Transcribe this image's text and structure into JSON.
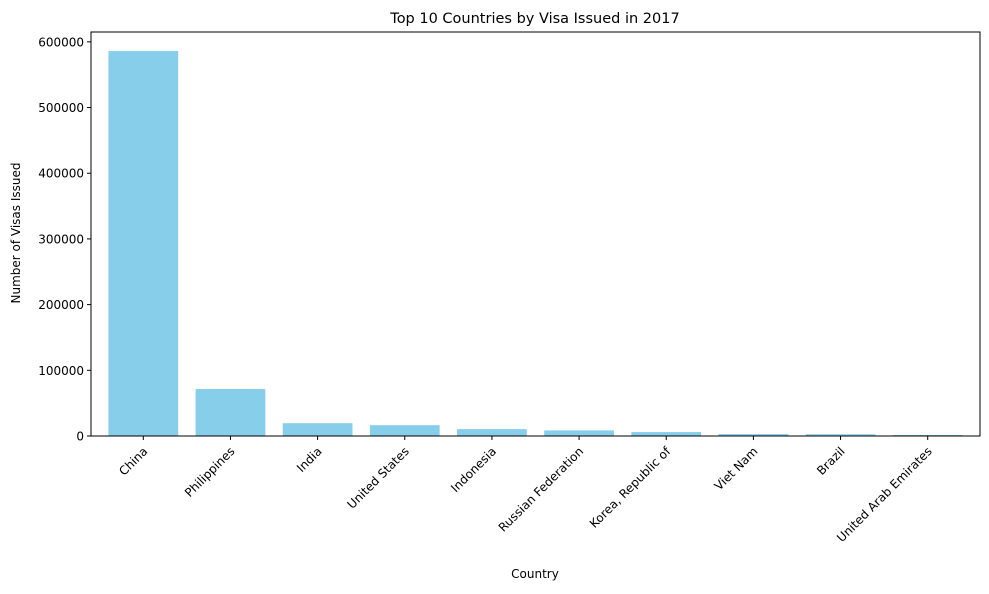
{
  "chart_data": {
    "type": "bar",
    "title": "Top 10 Countries by Visa Issued in 2017",
    "xlabel": "Country",
    "ylabel": "Number of Visas Issued",
    "categories": [
      "China",
      "Philippines",
      "India",
      "United States",
      "Indonesia",
      "Russian Federation",
      "Korea, Republic of",
      "Viet Nam",
      "Brazil",
      "United Arab Emirates"
    ],
    "values": [
      586000,
      71500,
      19500,
      16500,
      10500,
      8500,
      6000,
      3000,
      2700,
      1500
    ],
    "ylim": [
      0,
      615000
    ],
    "yticks": [
      0,
      100000,
      200000,
      300000,
      400000,
      500000,
      600000
    ],
    "ytick_labels": [
      "0",
      "100000",
      "200000",
      "300000",
      "400000",
      "500000",
      "600000"
    ],
    "grid": false,
    "bar_color": "#87ceeb"
  }
}
